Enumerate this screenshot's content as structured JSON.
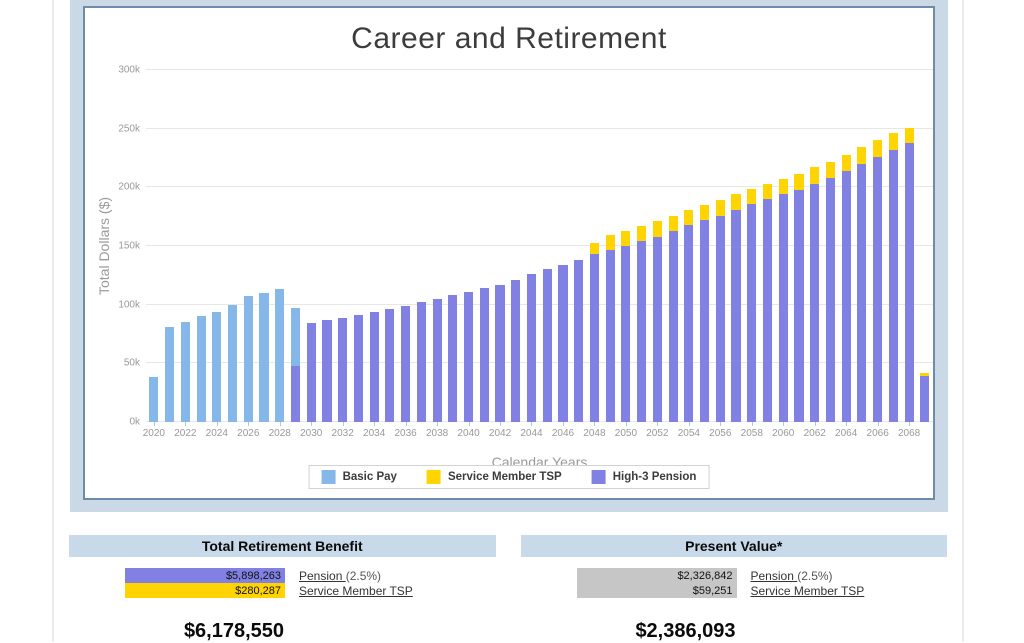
{
  "chart_data": {
    "type": "bar",
    "stacked": true,
    "title": "Career and Retirement",
    "xlabel": "Calendar Years",
    "ylabel": "Total Dollars ($)",
    "unit": "USD thousands",
    "ylim": [
      0,
      300
    ],
    "ytick_step": 50,
    "ytick_labels": [
      "0k",
      "50k",
      "100k",
      "150k",
      "200k",
      "250k",
      "300k"
    ],
    "xtick_every": 2,
    "grid": true,
    "legend_position": "bottom",
    "x": [
      2020,
      2021,
      2022,
      2023,
      2024,
      2025,
      2026,
      2027,
      2028,
      2029,
      2030,
      2031,
      2032,
      2033,
      2034,
      2035,
      2036,
      2037,
      2038,
      2039,
      2040,
      2041,
      2042,
      2043,
      2044,
      2045,
      2046,
      2047,
      2048,
      2049,
      2050,
      2051,
      2052,
      2053,
      2054,
      2055,
      2056,
      2057,
      2058,
      2059,
      2060,
      2061,
      2062,
      2063,
      2064,
      2065,
      2066,
      2067,
      2068,
      2069
    ],
    "series": [
      {
        "name": "Basic Pay",
        "color": "#85b7e8",
        "stack_level": 1,
        "values": [
          38,
          81,
          85,
          90,
          94,
          100,
          107,
          110,
          113,
          49,
          0,
          0,
          0,
          0,
          0,
          0,
          0,
          0,
          0,
          0,
          0,
          0,
          0,
          0,
          0,
          0,
          0,
          0,
          0,
          0,
          0,
          0,
          0,
          0,
          0,
          0,
          0,
          0,
          0,
          0,
          0,
          0,
          0,
          0,
          0,
          0,
          0,
          0,
          0,
          0
        ]
      },
      {
        "name": "Service Member TSP",
        "color": "#ffd400",
        "stack_level": 2,
        "values": [
          0,
          0,
          0,
          0,
          0,
          0,
          0,
          0,
          0,
          0,
          0,
          0,
          0,
          0,
          0,
          0,
          0,
          0,
          0,
          0,
          0,
          0,
          0,
          0,
          0,
          0,
          0,
          0,
          10,
          12,
          13,
          13,
          13,
          13,
          13,
          13,
          13,
          13,
          13,
          13,
          13,
          13,
          14,
          14,
          14,
          14,
          14,
          14,
          13,
          3
        ]
      },
      {
        "name": "High-3 Pension",
        "color": "#8181e3",
        "stack_level": 0,
        "values": [
          0,
          0,
          0,
          0,
          0,
          0,
          0,
          0,
          0,
          48,
          84,
          87,
          89,
          91,
          94,
          96,
          99,
          102,
          105,
          108,
          111,
          114,
          117,
          121,
          126,
          130,
          134,
          138,
          143,
          147,
          150,
          154,
          158,
          163,
          168,
          172,
          176,
          181,
          186,
          190,
          194,
          198,
          203,
          208,
          214,
          220,
          226,
          232,
          238,
          39
        ]
      }
    ]
  },
  "summary_panels": [
    {
      "title": "Total Retirement Benefit",
      "rows": [
        {
          "value": "$5,898,263",
          "label": "Pension ",
          "label_note": "(2.5%)",
          "bar_color": "#8181e3"
        },
        {
          "value": "$280,287",
          "label": "Service Member TSP",
          "label_note": "",
          "bar_color": "#ffd400"
        }
      ],
      "total": "$6,178,550"
    },
    {
      "title": "Present Value*",
      "rows": [
        {
          "value": "$2,326,842",
          "label": "Pension ",
          "label_note": "(2.5%)",
          "bar_color": "#c6c6c6"
        },
        {
          "value": "$59,251",
          "label": "Service Member TSP",
          "label_note": "",
          "bar_color": "#c6c6c6"
        }
      ],
      "total": "$2,386,093"
    }
  ]
}
